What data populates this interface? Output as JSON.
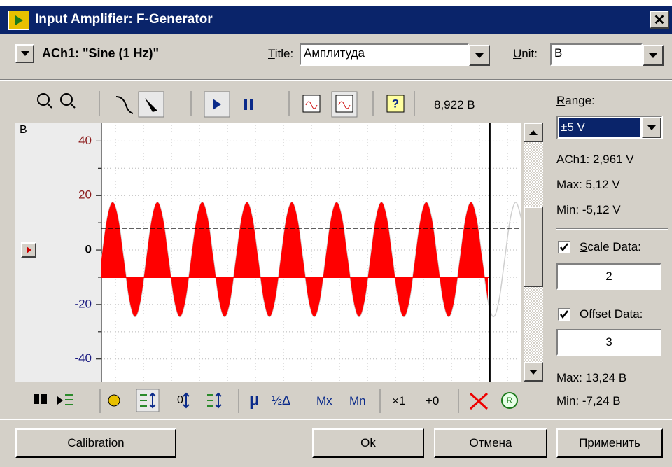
{
  "window": {
    "title": "Input Amplifier: F-Generator"
  },
  "header": {
    "channel": "ACh1: \"Sine (1 Hz)\"",
    "title_label": "Title:",
    "title_value": "Амплитуда",
    "unit_label": "Unit:",
    "unit_value": "В"
  },
  "toolbar": {
    "readout": "8,922 В"
  },
  "side": {
    "range_label": "Range:",
    "range_value": "±5 V",
    "ach": "ACh1: 2,961 V",
    "max": "Max: 5,12 V",
    "min": "Min: -5,12 V",
    "scale_label": "Scale Data:",
    "scale_value": "2",
    "scale_checked": true,
    "offset_label": "Offset Data:",
    "offset_value": "3",
    "offset_checked": true,
    "scaled_max": "Max: 13,24 В",
    "scaled_min": "Min: -7,24 В"
  },
  "bottom_toolbar": {
    "labels": [
      "μ",
      "½Δ",
      "Mx",
      "Mn",
      "×1",
      "+0"
    ]
  },
  "buttons": [
    "Calibration",
    "Ok",
    "Отмена",
    "Применить"
  ],
  "chart_data": {
    "type": "area",
    "y_label": "В",
    "x": [
      0,
      0.125,
      0.25,
      0.375,
      0.5,
      0.625,
      0.75,
      0.875,
      1,
      1.125,
      1.25,
      1.375,
      1.5,
      1.625,
      1.75,
      1.875,
      2,
      2.125,
      2.25,
      2.375,
      2.5,
      2.625,
      2.75,
      2.875,
      3,
      3.125,
      3.25,
      3.375,
      3.5,
      3.625,
      3.75,
      3.875,
      4,
      4.125,
      4.25,
      4.375,
      4.5,
      4.625,
      4.75,
      4.875,
      5,
      5.125,
      5.25,
      5.375,
      5.5,
      5.625,
      5.75,
      5.875,
      6,
      6.125,
      6.25,
      6.375,
      6.5,
      6.625,
      6.75,
      6.875,
      7,
      7.125,
      7.25,
      7.375,
      7.5,
      7.625,
      7.75,
      7.875,
      8,
      8.125,
      8.25,
      8.375,
      8.5,
      8.625,
      8.75,
      8.875,
      9,
      9.125,
      9.25,
      9.375
    ],
    "series": [
      {
        "color": "#ff0000",
        "values": [
          -3.5,
          11.4,
          17.5,
          11.4,
          -3.5,
          -18.4,
          -24.5,
          -18.4,
          -3.5,
          11.4,
          17.5,
          11.4,
          -3.5,
          -18.4,
          -24.5,
          -18.4,
          -3.5,
          11.4,
          17.5,
          11.4,
          -3.5,
          -18.4,
          -24.5,
          -18.4,
          -3.5,
          11.4,
          17.5,
          11.4,
          -3.5,
          -18.4,
          -24.5,
          -18.4,
          -3.5,
          11.4,
          17.5,
          11.4,
          -3.5,
          -18.4,
          -24.5,
          -18.4,
          -3.5,
          11.4,
          17.5,
          11.4,
          -3.5,
          -18.4,
          -24.5,
          -18.4,
          -3.5,
          11.4,
          17.5,
          11.4,
          -3.5,
          -18.4,
          -24.5,
          -18.4,
          -3.5,
          11.4,
          17.5,
          11.4,
          -3.5,
          -18.4,
          -24.5,
          -18.4,
          -3.5,
          11.4,
          17.5,
          11.4,
          -3.5,
          -18.4,
          -24.5,
          -18.4,
          -3.5,
          11.4,
          17.5,
          11.4
        ]
      }
    ],
    "baseline": -10,
    "cursor": 8.67,
    "level": 8,
    "trace_color": "#cfcfcf",
    "xlim": [
      0,
      9.375
    ],
    "ylim": [
      -47,
      46
    ],
    "yticks": [
      -40,
      -20,
      0,
      20,
      40
    ],
    "minor_yticks": [
      -30,
      -10,
      10,
      30
    ],
    "ytick_colors": [
      "#1a1a80",
      "#1a1a80",
      "#000000",
      "#8b1a1a",
      "#8b1a1a"
    ],
    "grid": true
  }
}
